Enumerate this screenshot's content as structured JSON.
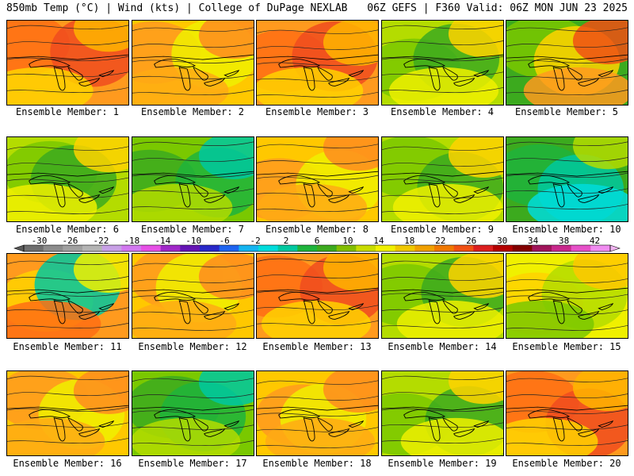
{
  "header": {
    "left": "850mb Temp (°C) | Wind (kts) | College of DuPage NEXLAB",
    "right": "06Z GEFS | F360 Valid: 06Z MON JUN 23 2025"
  },
  "panels": [
    {
      "label": "Ensemble Member: 1",
      "palette": "hot"
    },
    {
      "label": "Ensemble Member: 2",
      "palette": "warm"
    },
    {
      "label": "Ensemble Member: 3",
      "palette": "hot"
    },
    {
      "label": "Ensemble Member: 4",
      "palette": "cool"
    },
    {
      "label": "Ensemble Member: 5",
      "palette": "coolhot"
    },
    {
      "label": "Ensemble Member: 6",
      "palette": "cool"
    },
    {
      "label": "Ensemble Member: 7",
      "palette": "green"
    },
    {
      "label": "Ensemble Member: 8",
      "palette": "warm"
    },
    {
      "label": "Ensemble Member: 9",
      "palette": "cool"
    },
    {
      "label": "Ensemble Member: 10",
      "palette": "cold"
    },
    {
      "label": "Ensemble Member: 11",
      "palette": "coldhot"
    },
    {
      "label": "Ensemble Member: 12",
      "palette": "warm"
    },
    {
      "label": "Ensemble Member: 13",
      "palette": "hot"
    },
    {
      "label": "Ensemble Member: 14",
      "palette": "cool"
    },
    {
      "label": "Ensemble Member: 15",
      "palette": "yellow"
    },
    {
      "label": "Ensemble Member: 16",
      "palette": "warm"
    },
    {
      "label": "Ensemble Member: 17",
      "palette": "green"
    },
    {
      "label": "Ensemble Member: 18",
      "palette": "warm"
    },
    {
      "label": "Ensemble Member: 19",
      "palette": "cool"
    },
    {
      "label": "Ensemble Member: 20",
      "palette": "hot"
    }
  ],
  "colorbar": {
    "labels": [
      "-30",
      "-26",
      "-22",
      "-18",
      "-14",
      "-10",
      "-6",
      "-2",
      "2",
      "6",
      "10",
      "14",
      "18",
      "22",
      "26",
      "30",
      "34",
      "38",
      "42"
    ],
    "colors": [
      "#6e6e6e",
      "#8c8c8c",
      "#a0a0a0",
      "#b4b4b4",
      "#c8a0e6",
      "#d278f0",
      "#e650e6",
      "#a028c8",
      "#6414b4",
      "#2828c8",
      "#1e64f0",
      "#14b4f0",
      "#00dcdc",
      "#00c8a0",
      "#1eb43c",
      "#3caa1e",
      "#82be00",
      "#c8dc00",
      "#f0f000",
      "#f0c800",
      "#f0a000",
      "#f07800",
      "#f05014",
      "#dc1e1e",
      "#b40000",
      "#820000",
      "#a0145a",
      "#c8288c",
      "#e650c8",
      "#f08cf0"
    ]
  },
  "palettes": {
    "hot": [
      "#ff9a1e",
      "#ff6e14",
      "#f04c1e",
      "#ffd200",
      "#ffb400"
    ],
    "warm": [
      "#ffc800",
      "#ff9a1e",
      "#f0f000",
      "#ffaa14",
      "#ff8c1e"
    ],
    "cool": [
      "#b4dc00",
      "#7ac800",
      "#3caa1e",
      "#f0f000",
      "#ffd200"
    ],
    "coolhot": [
      "#3caa1e",
      "#7ac800",
      "#ffd200",
      "#ff9a1e",
      "#f05014"
    ],
    "green": [
      "#7ac800",
      "#3caa1e",
      "#1eb43c",
      "#b4dc00",
      "#00c8a0"
    ],
    "cold": [
      "#3caa1e",
      "#1eb43c",
      "#00c8a0",
      "#00dcdc",
      "#b4dc00"
    ],
    "coldhot": [
      "#ff9a1e",
      "#ffd200",
      "#00c8a0",
      "#ff6e14",
      "#f0f000"
    ],
    "yellow": [
      "#f0f000",
      "#ffd200",
      "#b4dc00",
      "#7ac800",
      "#ffc800"
    ]
  }
}
